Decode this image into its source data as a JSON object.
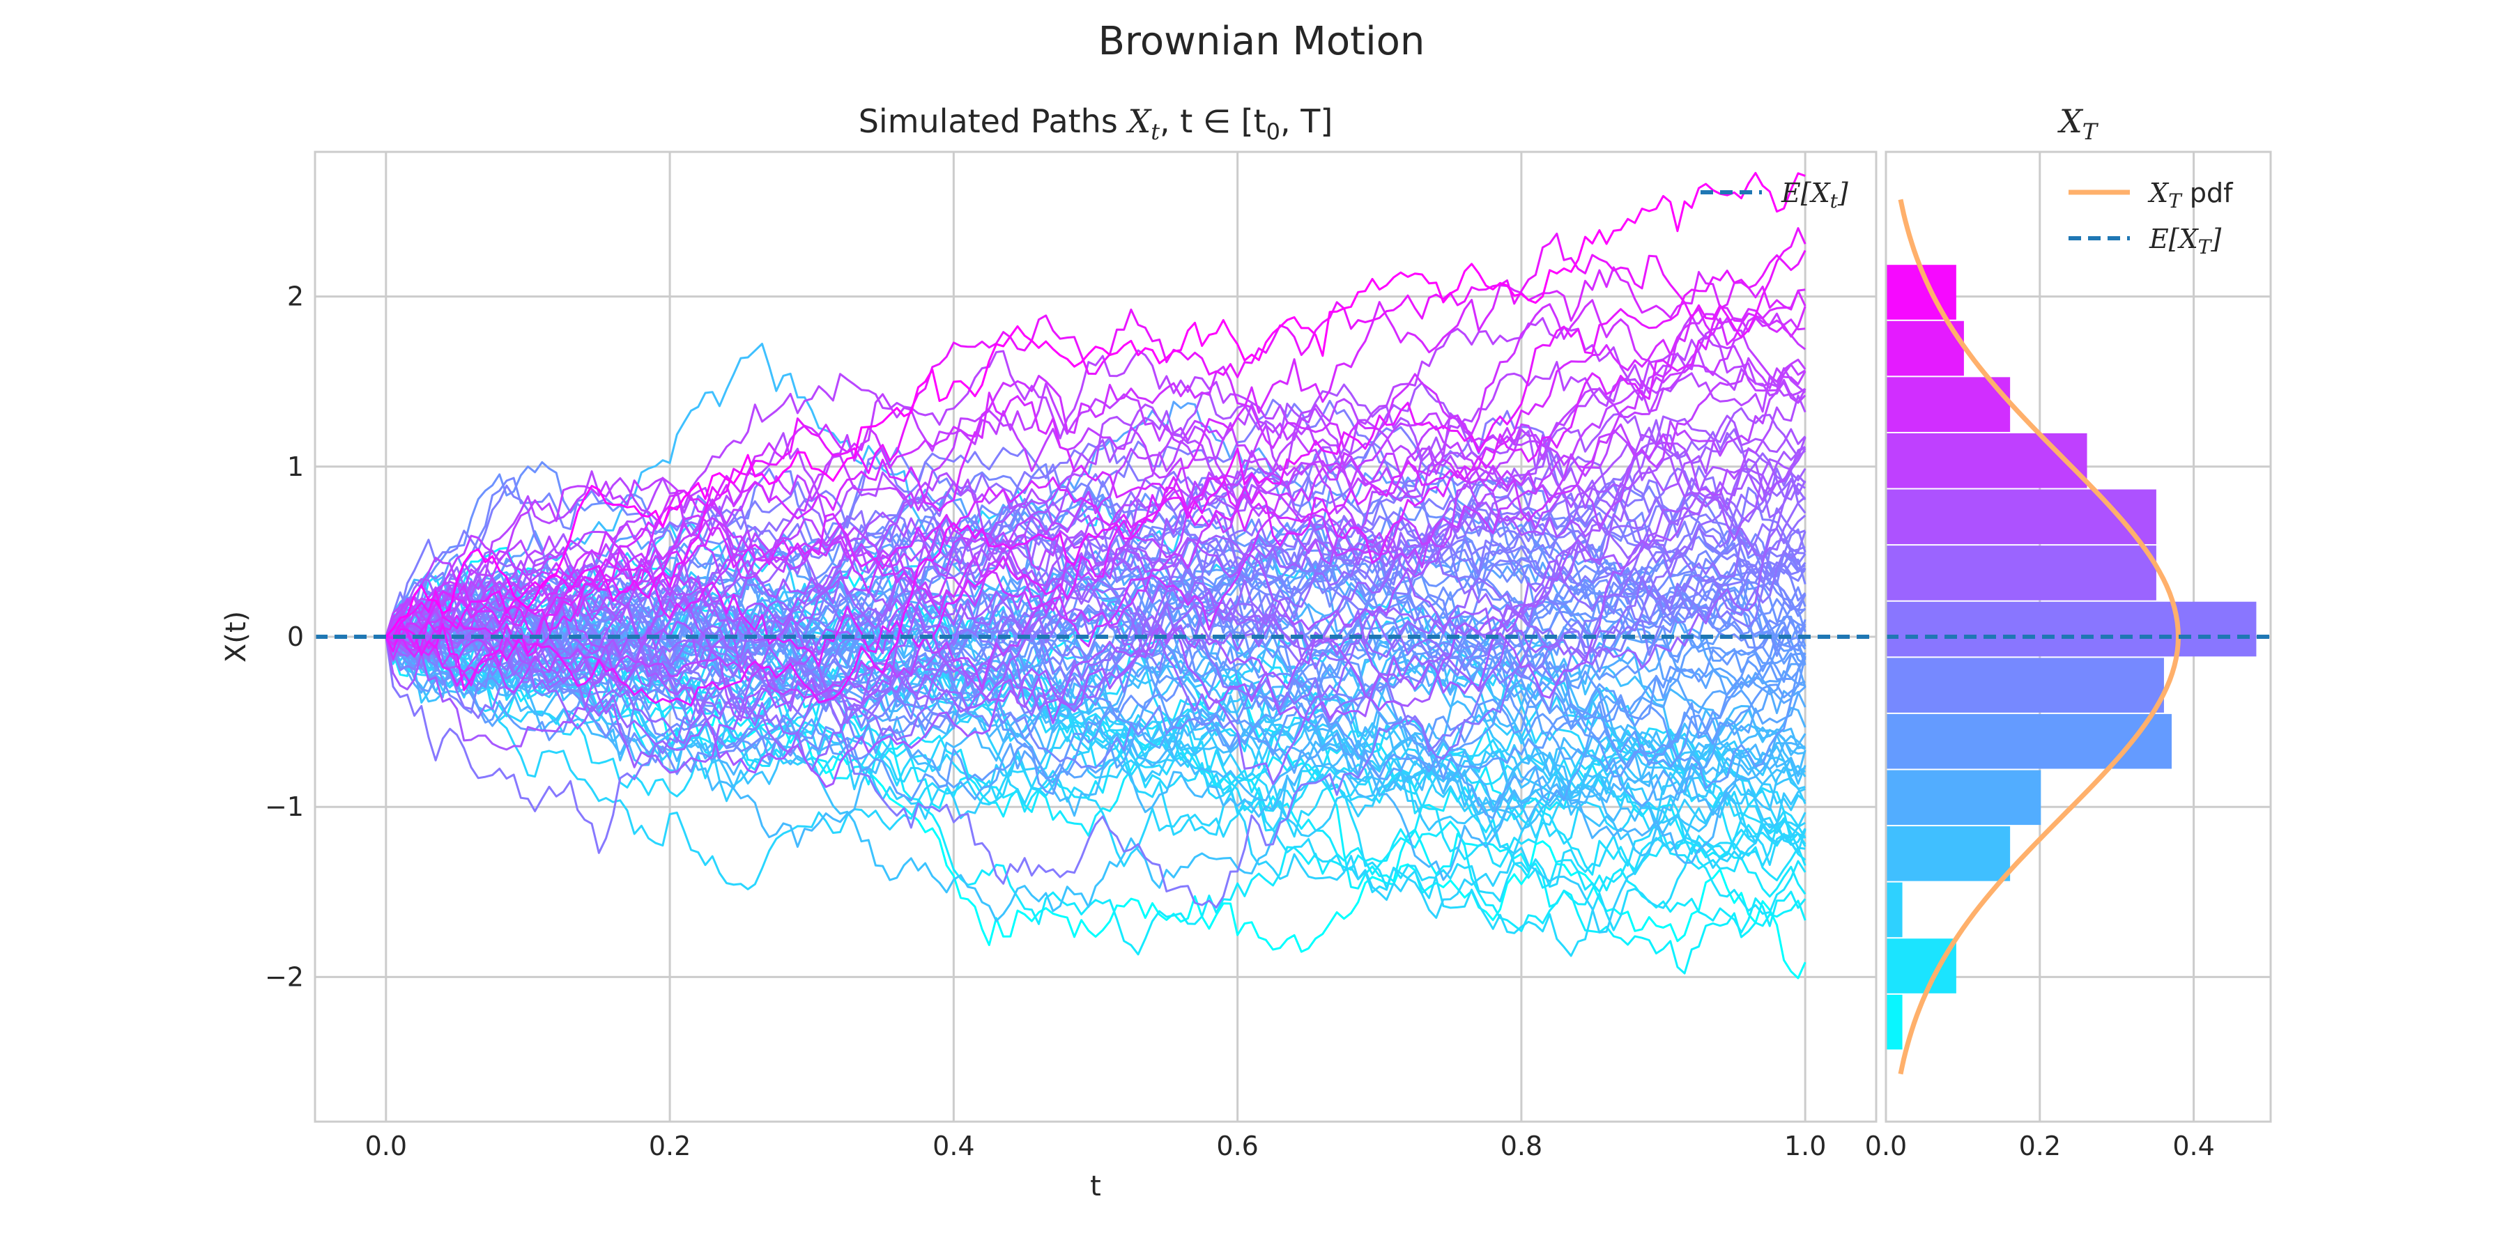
{
  "suptitle": "Brownian Motion",
  "chart_data": [
    {
      "type": "line",
      "title": "Simulated Paths X_t, t ∈ [t_0, T]",
      "title_parts": {
        "prefix": "Simulated Paths ",
        "x": "X",
        "t_sub": "t",
        "mid": ", t ∈ [t",
        "zero_sub": "0",
        "suffix": ", T]"
      },
      "xlabel": "t",
      "ylabel": "X(t)",
      "xlim": [
        -0.05,
        1.05
      ],
      "ylim": [
        -2.85,
        2.85
      ],
      "xticks": [
        0.0,
        0.2,
        0.4,
        0.6,
        0.8,
        1.0
      ],
      "xtick_labels": [
        "0.0",
        "0.2",
        "0.4",
        "0.6",
        "0.8",
        "1.0"
      ],
      "yticks": [
        -2,
        -1,
        0,
        1,
        2
      ],
      "ytick_labels": [
        "−2",
        "−1",
        "0",
        "1",
        "2"
      ],
      "n_paths": 100,
      "n_steps": 200,
      "t0": 0.0,
      "T": 1.0,
      "colormap": [
        "#00ffff",
        "#ff00ff"
      ],
      "mean_line": {
        "value": 0,
        "color": "#1f77b4",
        "legend": "E[X_t]",
        "legend_x": "E[X",
        "legend_sub": "t",
        "legend_close": "]"
      },
      "legend_position": "upper-right"
    },
    {
      "type": "bar",
      "orientation": "horizontal",
      "title": "X_T",
      "title_x": "X",
      "title_sub": "T",
      "xlim": [
        0.0,
        0.5
      ],
      "xticks": [
        0.0,
        0.2,
        0.4
      ],
      "xtick_labels": [
        "0.0",
        "0.2",
        "0.4"
      ],
      "bin_edges": [
        -2.43,
        -2.1,
        -1.77,
        -1.44,
        -1.11,
        -0.78,
        -0.45,
        -0.12,
        0.21,
        0.54,
        0.87,
        1.2,
        1.53,
        1.86,
        2.19
      ],
      "densities": [
        0.02,
        0.09,
        0.02,
        0.16,
        0.2,
        0.37,
        0.36,
        0.48,
        0.35,
        0.35,
        0.26,
        0.16,
        0.1,
        0.09
      ],
      "pdf": {
        "mean": 0,
        "std": 1.05,
        "y_range": [
          -2.57,
          2.57
        ],
        "color": "#ffb06b",
        "legend_x": "X",
        "legend_sub": "T",
        "legend_rest": " pdf"
      },
      "mean_line": {
        "value": 0,
        "color": "#1f77b4",
        "legend_x": "E[X",
        "legend_sub": "T",
        "legend_close": "]"
      },
      "legend_position": "upper-right"
    }
  ]
}
